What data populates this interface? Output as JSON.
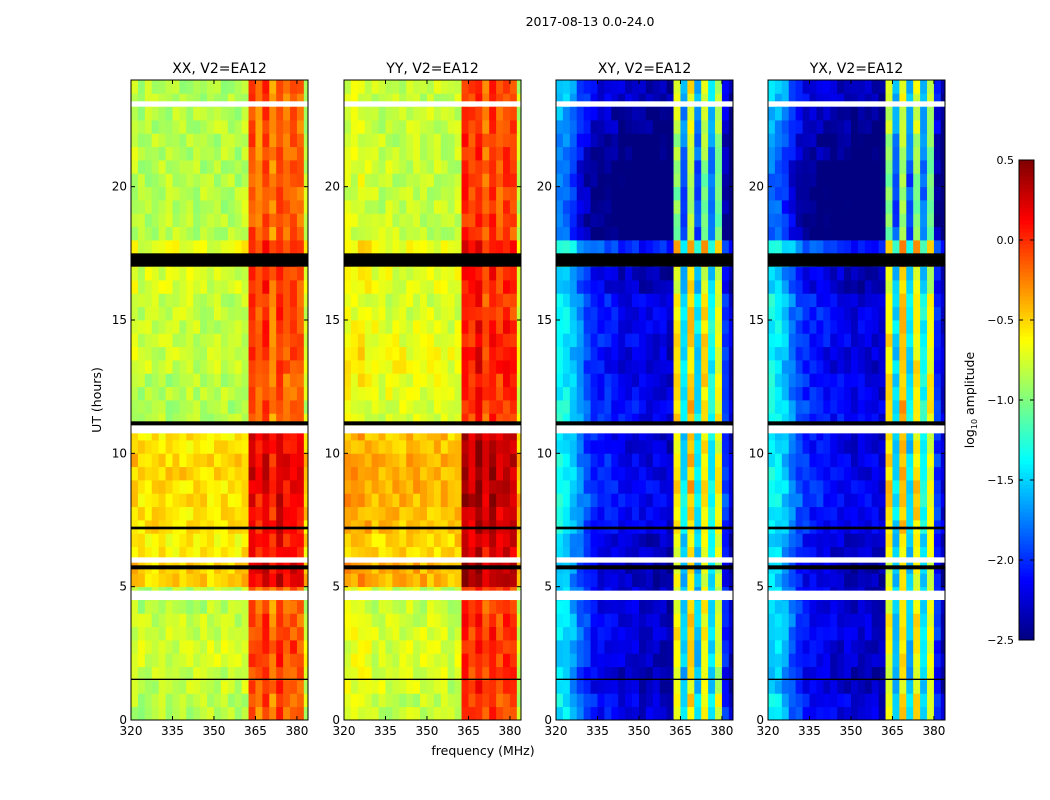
{
  "chart_data": {
    "type": "heatmap",
    "title": "2017-08-13 0.0-24.0",
    "xlabel": "frequency (MHz)",
    "ylabel": "UT (hours)",
    "xlim": [
      320,
      384
    ],
    "ylim": [
      0,
      24
    ],
    "xticks": [
      320,
      335,
      350,
      365,
      380
    ],
    "yticks": [
      0,
      5,
      10,
      15,
      20
    ],
    "freq_bin_width_mhz": 2.5,
    "hour_bin_width": 0.5,
    "colorbar": {
      "label_prefix": "log",
      "label_sub": "10",
      "label_suffix": " amplitude",
      "range": [
        -2.5,
        0.5
      ],
      "ticks": [
        "0.5",
        "0.0",
        "−0.5",
        "−1.0",
        "−1.5",
        "−2.0",
        "−2.5"
      ],
      "tick_values": [
        0.5,
        0.0,
        -0.5,
        -1.0,
        -1.5,
        -2.0,
        -2.5
      ],
      "colormap": "jet"
    },
    "panels": [
      {
        "title": "XX, V2=EA12",
        "freq_profile": [
          -0.8,
          -0.85,
          -0.85,
          -0.85,
          -0.85,
          -0.85,
          -0.85,
          -0.85,
          -0.85,
          -0.85,
          -0.85,
          -0.85,
          -0.85,
          -0.85,
          -0.85,
          -0.85,
          -0.8,
          -0.1,
          -0.25,
          -0.05,
          -0.3,
          -0.05,
          -0.2,
          -0.15,
          -0.2,
          -0.8
        ],
        "hour_offset": [
          0,
          0.05,
          0.1,
          0.05,
          0,
          0.35,
          0.25,
          0.3,
          0.3,
          0.35,
          0.3,
          0,
          0,
          0.05,
          0.05,
          0.05,
          0.1,
          0.15,
          0,
          0,
          0,
          0,
          0,
          0
        ]
      },
      {
        "title": "YY, V2=EA12",
        "freq_profile": [
          -0.75,
          -0.75,
          -0.7,
          -0.75,
          -0.8,
          -0.8,
          -0.8,
          -0.8,
          -0.8,
          -0.8,
          -0.8,
          -0.8,
          -0.8,
          -0.8,
          -0.8,
          -0.85,
          -0.8,
          0.0,
          -0.1,
          0.05,
          -0.2,
          0.0,
          -0.15,
          -0.05,
          -0.1,
          -0.8
        ],
        "hour_offset": [
          0,
          0.05,
          0.05,
          0.05,
          0,
          0.4,
          0.3,
          0.35,
          0.4,
          0.4,
          0.35,
          0.05,
          0.1,
          0.15,
          0.1,
          0.05,
          0.1,
          0.15,
          0,
          0,
          0,
          0,
          0,
          0
        ]
      },
      {
        "title": "XY, V2=EA12",
        "freq_profile": [
          -1.4,
          -1.45,
          -1.6,
          -1.8,
          -1.95,
          -2.05,
          -2.1,
          -2.1,
          -2.15,
          -2.2,
          -2.2,
          -2.2,
          -2.25,
          -2.25,
          -2.25,
          -2.25,
          -2.3,
          -0.6,
          -1.5,
          -0.5,
          -1.5,
          -0.6,
          -1.4,
          -0.7,
          -2.0,
          -2.3
        ],
        "hour_offset": [
          0,
          -0.1,
          -0.05,
          0,
          -0.05,
          -0.1,
          -0.05,
          0.05,
          0.1,
          0.05,
          0,
          0.1,
          0.05,
          0,
          0.05,
          0.05,
          -0.1,
          0.2,
          -0.4,
          -0.4,
          -0.4,
          -0.3,
          -0.2,
          -0.1
        ]
      },
      {
        "title": "YX, V2=EA12",
        "freq_profile": [
          -1.4,
          -1.45,
          -1.6,
          -1.8,
          -1.95,
          -2.05,
          -2.1,
          -2.1,
          -2.15,
          -2.2,
          -2.2,
          -2.2,
          -2.25,
          -2.25,
          -2.25,
          -2.25,
          -2.3,
          -0.6,
          -1.5,
          -0.5,
          -1.5,
          -0.6,
          -1.4,
          -0.7,
          -2.0,
          -2.3
        ],
        "hour_offset": [
          0,
          -0.1,
          -0.05,
          0,
          -0.05,
          -0.1,
          -0.05,
          0.05,
          0.1,
          0.05,
          0,
          0.1,
          0.05,
          0,
          0.05,
          0.05,
          -0.1,
          0.2,
          -0.4,
          -0.4,
          -0.4,
          -0.3,
          -0.2,
          -0.1
        ]
      }
    ],
    "flagged_hours_white": [
      [
        23.0,
        23.2
      ],
      [
        10.75,
        11.05
      ],
      [
        5.9,
        6.1
      ],
      [
        4.5,
        4.85
      ]
    ],
    "flagged_hours_black": [
      [
        17.0,
        17.5
      ],
      [
        11.05,
        11.2
      ],
      [
        7.15,
        7.25
      ],
      [
        5.65,
        5.8
      ],
      [
        1.5,
        1.55
      ]
    ]
  }
}
